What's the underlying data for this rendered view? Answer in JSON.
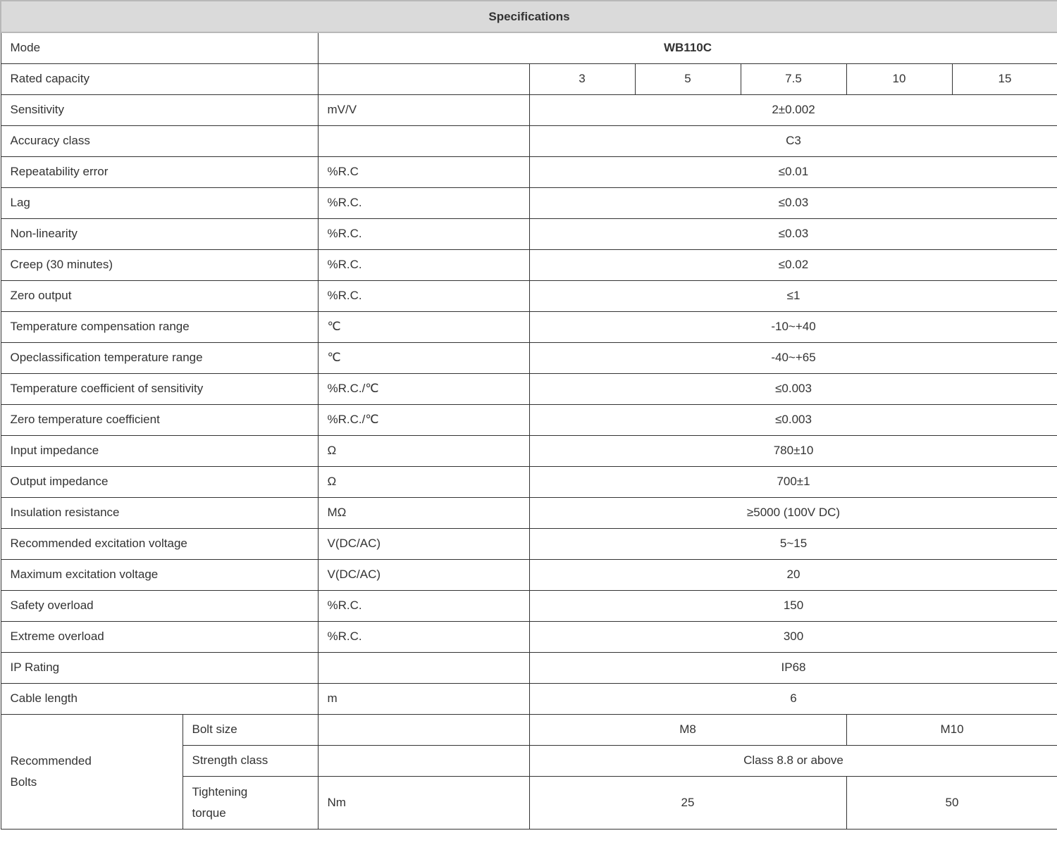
{
  "title": "Specifications",
  "model": {
    "label": "Mode",
    "value": "WB110C"
  },
  "capacity": {
    "label": "Rated capacity",
    "unit": "",
    "values": [
      "3",
      "5",
      "7.5",
      "10",
      "15"
    ]
  },
  "rows": [
    {
      "label": "Sensitivity",
      "unit": "mV/V",
      "value": "2±0.002"
    },
    {
      "label": "Accuracy class",
      "unit": "",
      "value": "C3"
    },
    {
      "label": "Repeatability error",
      "unit": "%R.C",
      "value": "≤0.01"
    },
    {
      "label": "Lag",
      "unit": "%R.C.",
      "value": "≤0.03"
    },
    {
      "label": "Non-linearity",
      "unit": "%R.C.",
      "value": "≤0.03"
    },
    {
      "label": "Creep (30 minutes)",
      "unit": "%R.C.",
      "value": "≤0.02"
    },
    {
      "label": "Zero output",
      "unit": "%R.C.",
      "value": "≤1"
    },
    {
      "label": "Temperature compensation range",
      "unit": "℃",
      "value": "-10~+40"
    },
    {
      "label": "Opeclassification temperature range",
      "unit": "℃",
      "value": "-40~+65"
    },
    {
      "label": "Temperature coefficient of sensitivity",
      "unit": "%R.C./℃",
      "value": "≤0.003"
    },
    {
      "label": "Zero temperature coefficient",
      "unit": "%R.C./℃",
      "value": "≤0.003"
    },
    {
      "label": "Input impedance",
      "unit": "Ω",
      "value": "780±10"
    },
    {
      "label": "Output impedance",
      "unit": "Ω",
      "value": "700±1"
    },
    {
      "label": "Insulation resistance",
      "unit": "MΩ",
      "value": "≥5000 (100V DC)"
    },
    {
      "label": "Recommended excitation voltage",
      "unit": "V(DC/AC)",
      "value": "5~15"
    },
    {
      "label": "Maximum excitation voltage",
      "unit": "V(DC/AC)",
      "value": "20"
    },
    {
      "label": "Safety overload",
      "unit": "%R.C.",
      "value": "150"
    },
    {
      "label": "Extreme overload",
      "unit": "%R.C.",
      "value": "300"
    },
    {
      "label": "IP Rating",
      "unit": "",
      "value": "IP68"
    },
    {
      "label": "Cable length",
      "unit": "m",
      "value": "6"
    }
  ],
  "bolts": {
    "group_label_line1": "Recommended",
    "group_label_line2": "Bolts",
    "bolt_size": {
      "label": "Bolt size",
      "unit": "",
      "values": [
        "M8",
        "M10"
      ]
    },
    "strength": {
      "label": "Strength class",
      "unit": "",
      "value": "Class 8.8 or above"
    },
    "torque": {
      "label_line1": "Tightening",
      "label_line2": "torque",
      "unit": "Nm",
      "values": [
        "25",
        "50"
      ]
    }
  }
}
